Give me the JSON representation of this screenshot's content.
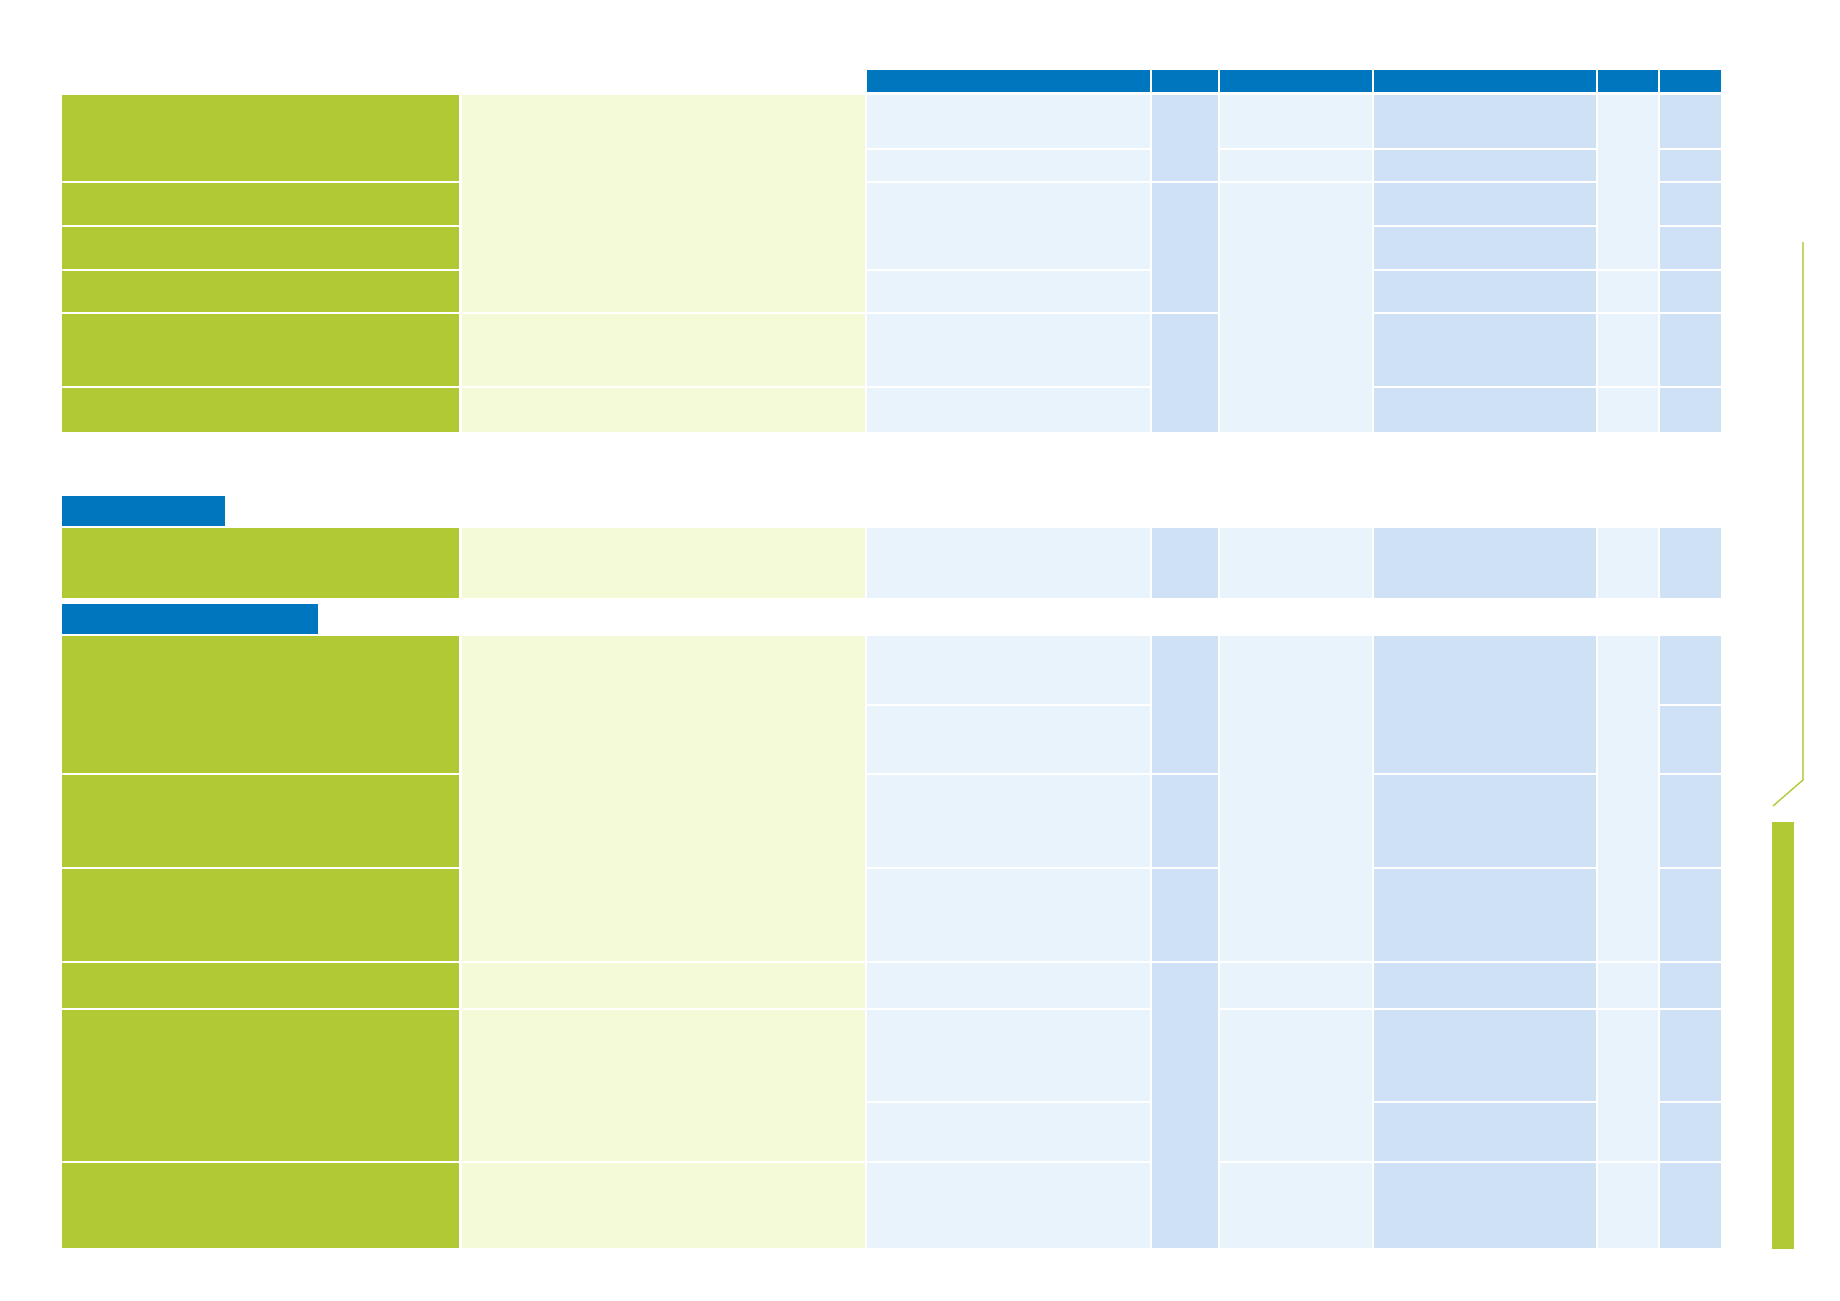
{
  "page": {
    "background": "#ffffff"
  },
  "palette": {
    "header_blue": "#0076bf",
    "criteria_green": "#b0c935",
    "description_light_green": "#f4f9d8",
    "light_blue": "#e8f3fc",
    "mid_blue": "#cfe1f4",
    "accent_line": "#b0c935"
  },
  "table": {
    "column_headers": [
      "",
      "",
      "",
      "",
      "",
      ""
    ],
    "section_1": {
      "rows": [
        "",
        "",
        "",
        "",
        "",
        ""
      ]
    },
    "section_2": {
      "title": "",
      "rows": [
        ""
      ]
    },
    "section_3": {
      "title": "",
      "rows": [
        "",
        "",
        "",
        "",
        "",
        ""
      ]
    }
  },
  "sidebar": {
    "label": ""
  }
}
